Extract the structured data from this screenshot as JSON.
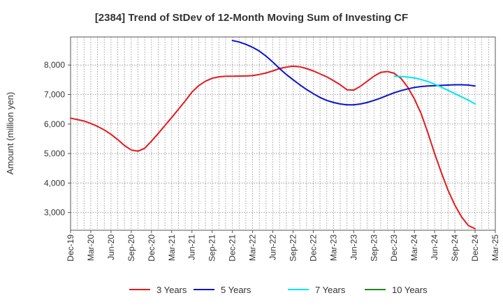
{
  "chart_data": {
    "type": "line",
    "title": "[2384]  Trend of StDev of 12-Month Moving Sum of Investing CF",
    "ylabel": "Amount (million yen)",
    "xlabel": "",
    "ylim": [
      2400,
      8950
    ],
    "yticks": [
      3000,
      4000,
      5000,
      6000,
      7000,
      8000
    ],
    "ytick_labels": [
      "3,000",
      "4,000",
      "5,000",
      "6,000",
      "7,000",
      "8,000"
    ],
    "categories": [
      "Dec-19",
      "Mar-20",
      "Jun-20",
      "Sep-20",
      "Dec-20",
      "Mar-21",
      "Jun-21",
      "Sep-21",
      "Dec-21",
      "Mar-22",
      "Jun-22",
      "Sep-22",
      "Dec-22",
      "Mar-23",
      "Jun-23",
      "Sep-23",
      "Dec-23",
      "Mar-24",
      "Jun-24",
      "Sep-24",
      "Dec-24",
      "Mar-25"
    ],
    "grid": true,
    "legend_position": "bottom",
    "series": [
      {
        "name": "3 Years",
        "color": "#e31a1c",
        "x": [
          "Dec-19",
          "Jan-20",
          "Feb-20",
          "Mar-20",
          "Apr-20",
          "May-20",
          "Jun-20",
          "Jul-20",
          "Aug-20",
          "Sep-20",
          "Oct-20",
          "Nov-20",
          "Dec-20",
          "Jan-21",
          "Feb-21",
          "Mar-21",
          "Apr-21",
          "May-21",
          "Jun-21",
          "Jul-21",
          "Aug-21",
          "Sep-21",
          "Oct-21",
          "Nov-21",
          "Dec-21",
          "Jan-22",
          "Feb-22",
          "Mar-22",
          "Apr-22",
          "May-22",
          "Jun-22",
          "Jul-22",
          "Aug-22",
          "Sep-22",
          "Oct-22",
          "Nov-22",
          "Dec-22",
          "Jan-23",
          "Feb-23",
          "Mar-23",
          "Apr-23",
          "May-23",
          "Jun-23",
          "Jul-23",
          "Aug-23",
          "Sep-23",
          "Oct-23",
          "Nov-23",
          "Dec-23",
          "Jan-24",
          "Feb-24",
          "Mar-24",
          "Apr-24",
          "May-24",
          "Jun-24",
          "Jul-24",
          "Aug-24",
          "Sep-24",
          "Oct-24",
          "Nov-24",
          "Dec-24"
        ],
        "values": [
          6200,
          6150,
          6100,
          6020,
          5920,
          5800,
          5650,
          5470,
          5270,
          5120,
          5080,
          5180,
          5420,
          5680,
          5950,
          6220,
          6500,
          6780,
          7080,
          7300,
          7450,
          7550,
          7600,
          7620,
          7620,
          7625,
          7630,
          7640,
          7680,
          7730,
          7800,
          7880,
          7930,
          7960,
          7940,
          7880,
          7800,
          7700,
          7600,
          7470,
          7330,
          7160,
          7150,
          7280,
          7450,
          7620,
          7750,
          7780,
          7720,
          7550,
          7250,
          6850,
          6350,
          5700,
          5000,
          4350,
          3750,
          3250,
          2850,
          2560,
          2450
        ]
      },
      {
        "name": "5 Years",
        "color": "#0a14c8",
        "x": [
          "Dec-21",
          "Jan-22",
          "Feb-22",
          "Mar-22",
          "Apr-22",
          "May-22",
          "Jun-22",
          "Jul-22",
          "Aug-22",
          "Sep-22",
          "Oct-22",
          "Nov-22",
          "Dec-22",
          "Jan-23",
          "Feb-23",
          "Mar-23",
          "Apr-23",
          "May-23",
          "Jun-23",
          "Jul-23",
          "Aug-23",
          "Sep-23",
          "Oct-23",
          "Nov-23",
          "Dec-23",
          "Jan-24",
          "Feb-24",
          "Mar-24",
          "Apr-24",
          "May-24",
          "Jun-24",
          "Jul-24",
          "Aug-24",
          "Sep-24",
          "Oct-24",
          "Nov-24",
          "Dec-24"
        ],
        "values": [
          8830,
          8780,
          8700,
          8600,
          8470,
          8300,
          8100,
          7880,
          7680,
          7500,
          7330,
          7170,
          7030,
          6900,
          6800,
          6730,
          6680,
          6650,
          6650,
          6680,
          6730,
          6800,
          6880,
          6970,
          7060,
          7130,
          7190,
          7240,
          7270,
          7290,
          7300,
          7310,
          7320,
          7330,
          7330,
          7320,
          7290
        ]
      },
      {
        "name": "7 Years",
        "color": "#00e5ee",
        "x": [
          "Dec-23",
          "Jan-24",
          "Feb-24",
          "Mar-24",
          "Apr-24",
          "May-24",
          "Jun-24",
          "Jul-24",
          "Aug-24",
          "Sep-24",
          "Oct-24",
          "Nov-24",
          "Dec-24"
        ],
        "values": [
          7620,
          7610,
          7590,
          7560,
          7510,
          7440,
          7350,
          7250,
          7140,
          7030,
          6920,
          6810,
          6680
        ]
      },
      {
        "name": "10 Years",
        "color": "#1a8a1a",
        "x": [],
        "values": []
      }
    ]
  }
}
